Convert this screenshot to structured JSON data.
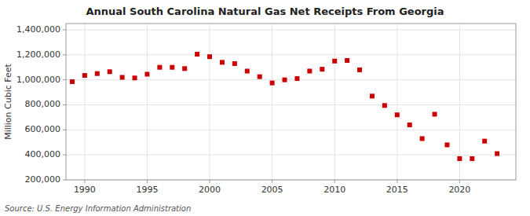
{
  "chart_data": {
    "type": "scatter",
    "title": "Annual South Carolina Natural Gas Net Receipts From Georgia",
    "y_label": "Million Cubic Feet",
    "source": "Source: U.S. Energy Information Administration",
    "color": "#cc0000",
    "marker": "square",
    "grid": true,
    "xlim": [
      1988.5,
      2024.5
    ],
    "ylim": [
      200000,
      1450000
    ],
    "xticks": [
      1990,
      1995,
      2000,
      2005,
      2010,
      2015,
      2020
    ],
    "yticks": [
      {
        "value": 200000,
        "label": "200,000"
      },
      {
        "value": 400000,
        "label": "400,000"
      },
      {
        "value": 600000,
        "label": "600,000"
      },
      {
        "value": 800000,
        "label": "800,000"
      },
      {
        "value": 1000000,
        "label": "1,000,000"
      },
      {
        "value": 1200000,
        "label": "1,200,000"
      },
      {
        "value": 1400000,
        "label": "1,400,000"
      }
    ],
    "x": [
      1989,
      1990,
      1991,
      1992,
      1993,
      1994,
      1995,
      1996,
      1997,
      1998,
      1999,
      2000,
      2001,
      2002,
      2003,
      2004,
      2005,
      2006,
      2007,
      2008,
      2009,
      2010,
      2011,
      2012,
      2013,
      2014,
      2015,
      2016,
      2017,
      2018,
      2019,
      2020,
      2021,
      2022,
      2023
    ],
    "values": [
      985000,
      1035000,
      1050000,
      1065000,
      1020000,
      1015000,
      1045000,
      1100000,
      1100000,
      1090000,
      1205000,
      1185000,
      1140000,
      1130000,
      1070000,
      1025000,
      975000,
      1000000,
      1010000,
      1070000,
      1085000,
      1150000,
      1155000,
      1080000,
      870000,
      795000,
      720000,
      640000,
      530000,
      725000,
      480000,
      370000,
      370000,
      510000,
      410000
    ]
  }
}
